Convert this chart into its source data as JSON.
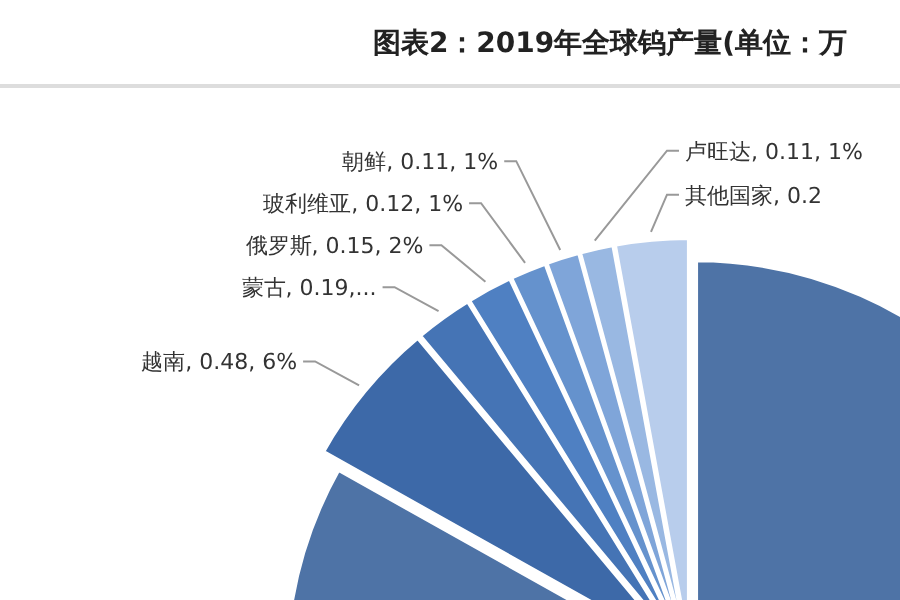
{
  "chart_data": {
    "type": "pie",
    "title": "图表2：2019年全球钨产量(单位：万",
    "categories": [
      null,
      "越南",
      "蒙古",
      "俄罗斯",
      "玻利维亚",
      "朝鲜",
      "卢旺达",
      "其他国家"
    ],
    "values": [
      6.9,
      0.48,
      0.19,
      0.15,
      0.12,
      0.11,
      0.11,
      0.24
    ],
    "value_labels": [
      null,
      "0.48, 6%",
      "0.19,...",
      "0.15, 2%",
      "0.12, 1%",
      "0.11, 1%",
      "0.11, 1%",
      "0.2"
    ],
    "colors": [
      "#4e73a6",
      "#3d69a8",
      "#4574b5",
      "#4f80c2",
      "#6592cd",
      "#7fa5d9",
      "#99b8e2",
      "#b8cdec"
    ],
    "legend": false
  }
}
